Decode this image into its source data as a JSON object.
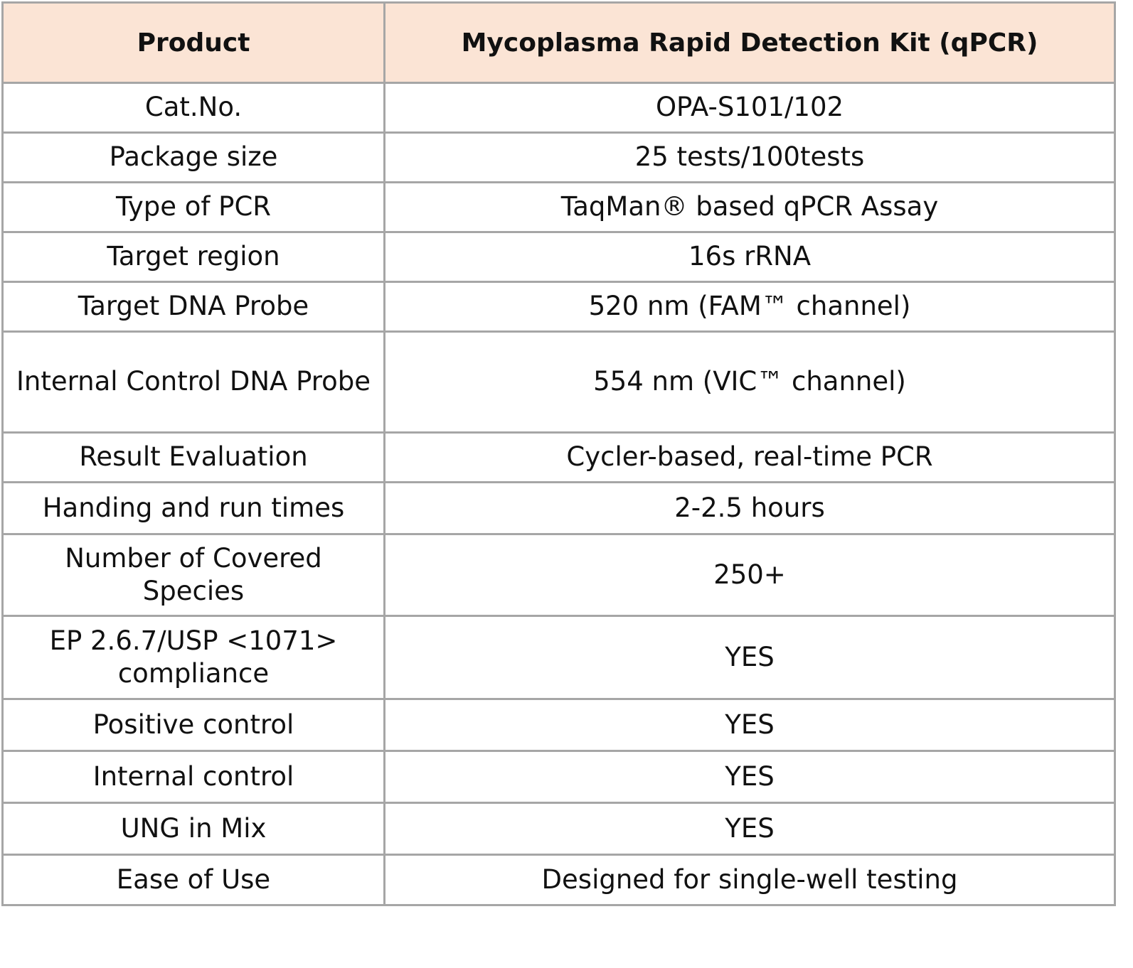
{
  "header": {
    "col1": "Product",
    "col2": "Mycoplasma Rapid Detection Kit (qPCR)"
  },
  "rows": [
    {
      "label": "Cat.No.",
      "value": "OPA-S101/102"
    },
    {
      "label": "Package size",
      "value": "25 tests/100tests"
    },
    {
      "label": "Type of PCR",
      "value": "TaqMan® based qPCR Assay"
    },
    {
      "label": "Target region",
      "value": "16s rRNA"
    },
    {
      "label": "Target DNA Probe",
      "value": "520 nm (FAM™ channel)"
    },
    {
      "label": "Internal Control DNA Probe",
      "value": "554 nm (VIC™ channel)"
    },
    {
      "label": "Result Evaluation",
      "value": "Cycler-based, real-time PCR"
    },
    {
      "label": "Handing and run times",
      "value": "2-2.5 hours"
    },
    {
      "label": "Number of Covered Species",
      "value": "250+"
    },
    {
      "label": "EP 2.6.7/USP <1071> compliance",
      "value": "YES"
    },
    {
      "label": "Positive control",
      "value": "YES"
    },
    {
      "label": "Internal control",
      "value": "YES"
    },
    {
      "label": "UNG in Mix",
      "value": "YES"
    },
    {
      "label": "Ease of Use",
      "value": "Designed for single-well testing"
    }
  ],
  "colors": {
    "header_bg": "#fbe4d5",
    "border": "#a6a6a6"
  }
}
